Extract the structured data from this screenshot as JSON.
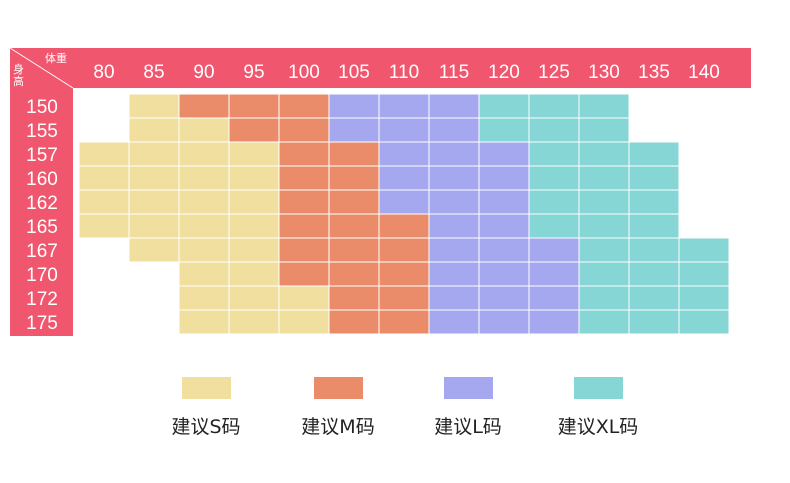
{
  "chart_data": {
    "type": "heatmap",
    "corner": {
      "top_label": "体重",
      "side_label": "身高"
    },
    "weights": [
      "80",
      "85",
      "90",
      "95",
      "100",
      "105",
      "110",
      "115",
      "120",
      "125",
      "130",
      "135",
      "140"
    ],
    "heights": [
      "150",
      "155",
      "157",
      "160",
      "162",
      "165",
      "167",
      "170",
      "172",
      "175"
    ],
    "grid": [
      [
        null,
        "S",
        "M",
        "M",
        "M",
        "L",
        "L",
        "L",
        "XL",
        "XL",
        "XL",
        null,
        null
      ],
      [
        null,
        "S",
        "S",
        "M",
        "M",
        "L",
        "L",
        "L",
        "XL",
        "XL",
        "XL",
        null,
        null
      ],
      [
        "S",
        "S",
        "S",
        "S",
        "M",
        "M",
        "L",
        "L",
        "L",
        "XL",
        "XL",
        "XL",
        null
      ],
      [
        "S",
        "S",
        "S",
        "S",
        "M",
        "M",
        "L",
        "L",
        "L",
        "XL",
        "XL",
        "XL",
        null
      ],
      [
        "S",
        "S",
        "S",
        "S",
        "M",
        "M",
        "L",
        "L",
        "L",
        "XL",
        "XL",
        "XL",
        null
      ],
      [
        "S",
        "S",
        "S",
        "S",
        "M",
        "M",
        "M",
        "L",
        "L",
        "XL",
        "XL",
        "XL",
        null
      ],
      [
        null,
        "S",
        "S",
        "S",
        "M",
        "M",
        "M",
        "L",
        "L",
        "L",
        "XL",
        "XL",
        "XL"
      ],
      [
        null,
        null,
        "S",
        "S",
        "M",
        "M",
        "M",
        "L",
        "L",
        "L",
        "XL",
        "XL",
        "XL"
      ],
      [
        null,
        null,
        "S",
        "S",
        "S",
        "M",
        "M",
        "L",
        "L",
        "L",
        "XL",
        "XL",
        "XL"
      ],
      [
        null,
        null,
        "S",
        "S",
        "S",
        "M",
        "M",
        "L",
        "L",
        "L",
        "XL",
        "XL",
        "XL"
      ]
    ],
    "sizes": {
      "S": {
        "label": "建议S码",
        "color": "#f1dfa0"
      },
      "M": {
        "label": "建议M码",
        "color": "#ea8c6a"
      },
      "L": {
        "label": "建议L码",
        "color": "#a5a8ef"
      },
      "XL": {
        "label": "建议XL码",
        "color": "#86d6d5"
      }
    },
    "header_color": "#f1566f"
  }
}
